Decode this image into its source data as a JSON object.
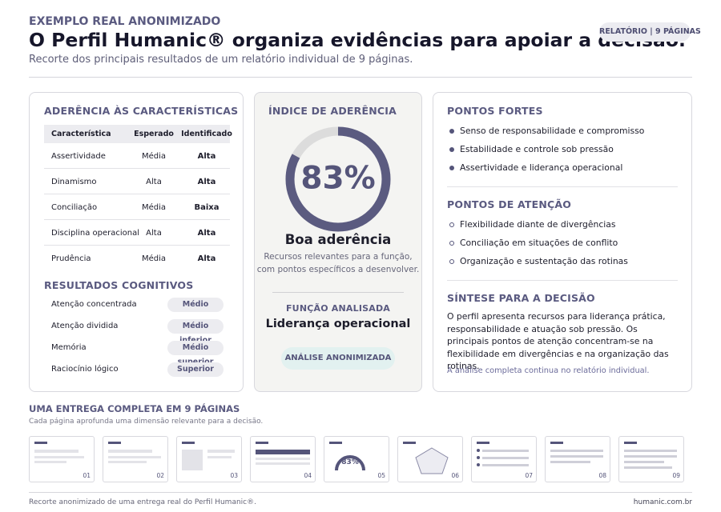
{
  "header": {
    "overline": "EXEMPLO REAL ANONIMIZADO",
    "title": "O Perfil Humanic® organiza evidências para apoiar a decisão.",
    "subtitle": "Recorte dos principais resultados de um relatório individual de 9 páginas.",
    "badge": "RELATÓRIO | 9 PÁGINAS"
  },
  "traits": {
    "title": "ADERÊNCIA ÀS CARACTERÍSTICAS",
    "columns": [
      "Característica",
      "Esperado",
      "Identificado"
    ],
    "rows": [
      [
        "Assertividade",
        "Média",
        "Alta"
      ],
      [
        "Dinamismo",
        "Alta",
        "Alta"
      ],
      [
        "Conciliação",
        "Média",
        "Baixa"
      ],
      [
        "Disciplina operacional",
        "Alta",
        "Alta"
      ],
      [
        "Prudência",
        "Média",
        "Alta"
      ]
    ]
  },
  "cognitive": {
    "title": "RESULTADOS COGNITIVOS",
    "rows": [
      [
        "Atenção concentrada",
        "Médio"
      ],
      [
        "Atenção dividida",
        "Médio inferior"
      ],
      [
        "Memória",
        "Médio superior"
      ],
      [
        "Raciocínio lógico",
        "Superior"
      ]
    ]
  },
  "index": {
    "title": "ÍNDICE DE ADERÊNCIA",
    "value": 83,
    "label": "83%",
    "verdict": "Boa aderência",
    "description": [
      "Recursos relevantes para a função,",
      "com pontos específicos a desenvolver."
    ],
    "role_heading": "FUNÇÃO ANALISADA",
    "role": "Liderança operacional",
    "tag": "ANÁLISE ANONIMIZADA"
  },
  "strengths": {
    "title": "PONTOS FORTES",
    "items": [
      "Senso de responsabilidade e compromisso",
      "Estabilidade e controle sob pressão",
      "Assertividade e liderança operacional"
    ]
  },
  "attention": {
    "title": "PONTOS DE ATENÇÃO",
    "items": [
      "Flexibilidade diante de divergências",
      "Conciliação em situações de conflito",
      "Organização e sustentação das rotinas"
    ]
  },
  "synthesis": {
    "title": "SÍNTESE PARA A DECISÃO",
    "text": "O perfil apresenta recursos para liderança prática, responsabilidade e atuação sob pressão. Os principais pontos de atenção concentram-se na flexibilidade em divergências e na organização das rotinas.",
    "note": "A análise completa continua no relatório individual."
  },
  "delivery": {
    "title": "UMA ENTREGA COMPLETA EM 9 PÁGINAS",
    "subtitle": "Cada página aprofunda uma dimensão relevante para a decisão.",
    "pages": [
      "01",
      "02",
      "03",
      "04",
      "05",
      "06",
      "07",
      "08",
      "09"
    ]
  },
  "footer": {
    "left": "Recorte anonimizado de uma entrega real do Perfil Humanic®.",
    "right": "humanic.com.br"
  }
}
